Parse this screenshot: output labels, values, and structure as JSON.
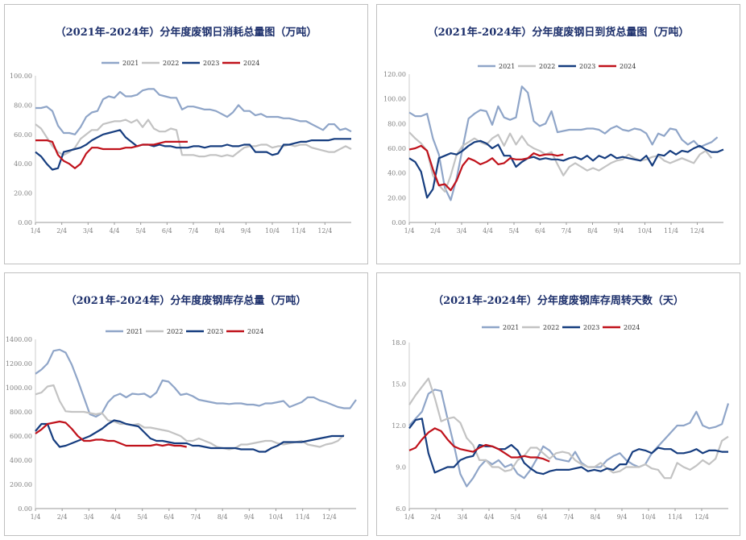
{
  "chart_data": [
    {
      "type": "line",
      "title": "（2021年-2024年）分年度废钢日消耗总量图（万吨）",
      "x_tick_labels": [
        "1/4",
        "2/4",
        "3/4",
        "4/4",
        "5/4",
        "6/4",
        "7/4",
        "8/4",
        "9/4",
        "10/4",
        "11/4",
        "12/4"
      ],
      "y_tick_labels": [
        "0.00",
        "20.00",
        "40.00",
        "60.00",
        "80.00",
        "100.00"
      ],
      "ylim": [
        0,
        100
      ],
      "grid": false,
      "legend_position": "top",
      "series": [
        {
          "name": "2021",
          "color": "#8fa5c8",
          "values": [
            78,
            78,
            79,
            76,
            66,
            61,
            61,
            60,
            65,
            72,
            75,
            76,
            84,
            86,
            85,
            89,
            86,
            86,
            87,
            90,
            91,
            91,
            87,
            86,
            85,
            85,
            77,
            79,
            79,
            78,
            77,
            77,
            76,
            74,
            72,
            75,
            80,
            76,
            76,
            73,
            74,
            72,
            72,
            72,
            71,
            71,
            70,
            69,
            69,
            67,
            65,
            63,
            67,
            67,
            63,
            64,
            62
          ]
        },
        {
          "name": "2022",
          "color": "#c3c3c3",
          "values": [
            67,
            64,
            58,
            52,
            48,
            46,
            48,
            51,
            57,
            60,
            63,
            63,
            67,
            68,
            69,
            69,
            70,
            68,
            70,
            65,
            70,
            64,
            62,
            62,
            64,
            63,
            46,
            46,
            46,
            45,
            45,
            46,
            46,
            45,
            46,
            45,
            48,
            51,
            52,
            52,
            53,
            53,
            51,
            52,
            52,
            53,
            52,
            53,
            53,
            51,
            50,
            49,
            48,
            48,
            50,
            52,
            50
          ]
        },
        {
          "name": "2023",
          "color": "#163d7f",
          "values": [
            48,
            45,
            40,
            36,
            37,
            48,
            49,
            50,
            51,
            53,
            56,
            58,
            60,
            61,
            62,
            63,
            58,
            55,
            52,
            53,
            53,
            52,
            53,
            52,
            52,
            51,
            51,
            51,
            52,
            52,
            51,
            52,
            52,
            52,
            53,
            52,
            52,
            53,
            53,
            48,
            48,
            48,
            46,
            47,
            53,
            53,
            54,
            55,
            55,
            56,
            56,
            56,
            56,
            57,
            57,
            57,
            57
          ]
        },
        {
          "name": "2024",
          "color": "#c0121b",
          "values": [
            56,
            56,
            56,
            55,
            46,
            42,
            40,
            37,
            40,
            47,
            51,
            51,
            50,
            50,
            50,
            50,
            51,
            51,
            52,
            53,
            53,
            53,
            54,
            55,
            55,
            55,
            55,
            55
          ]
        }
      ]
    },
    {
      "type": "line",
      "title": "（2021年-2024年）分年度废钢日到货总量图（万吨）",
      "x_tick_labels": [
        "1/4",
        "2/4",
        "3/4",
        "4/4",
        "5/4",
        "6/4",
        "7/4",
        "8/4",
        "9/4",
        "10/4",
        "11/4",
        "12/4"
      ],
      "y_tick_labels": [
        "0.00",
        "20.00",
        "40.00",
        "60.00",
        "80.00",
        "100.00",
        "120.00"
      ],
      "ylim": [
        0,
        120
      ],
      "grid": false,
      "legend_position": "top",
      "series": [
        {
          "name": "2021",
          "color": "#8fa5c8",
          "values": [
            89,
            86,
            86,
            88,
            68,
            55,
            28,
            18,
            36,
            60,
            84,
            88,
            91,
            90,
            79,
            94,
            85,
            83,
            85,
            110,
            105,
            82,
            78,
            80,
            90,
            73,
            74,
            75,
            75,
            75,
            76,
            76,
            75,
            72,
            76,
            78,
            75,
            74,
            76,
            75,
            72,
            63,
            72,
            70,
            76,
            75,
            67,
            63,
            66,
            61,
            63,
            65,
            69
          ]
        },
        {
          "name": "2022",
          "color": "#c3c3c3",
          "values": [
            73,
            68,
            64,
            58,
            38,
            30,
            25,
            38,
            55,
            62,
            65,
            68,
            65,
            63,
            68,
            71,
            62,
            72,
            63,
            70,
            63,
            60,
            58,
            55,
            57,
            47,
            38,
            45,
            48,
            45,
            42,
            44,
            42,
            45,
            48,
            50,
            51,
            55,
            52,
            50,
            51,
            53,
            54,
            50,
            48,
            50,
            52,
            50,
            48,
            55,
            58,
            52
          ]
        },
        {
          "name": "2023",
          "color": "#163d7f",
          "values": [
            52,
            49,
            41,
            20,
            27,
            52,
            54,
            56,
            55,
            58,
            62,
            65,
            66,
            64,
            60,
            63,
            54,
            54,
            45,
            49,
            52,
            53,
            51,
            52,
            51,
            51,
            50,
            52,
            53,
            51,
            54,
            50,
            54,
            52,
            55,
            52,
            53,
            52,
            51,
            50,
            54,
            46,
            55,
            54,
            58,
            55,
            58,
            57,
            60,
            62,
            59,
            57,
            57,
            59
          ]
        },
        {
          "name": "2024",
          "color": "#c0121b",
          "values": [
            59,
            60,
            62,
            58,
            43,
            30,
            31,
            26,
            34,
            46,
            52,
            50,
            47,
            49,
            52,
            47,
            48,
            52,
            51,
            51,
            52,
            56,
            54,
            55,
            55,
            54,
            55
          ]
        }
      ]
    },
    {
      "type": "line",
      "title": "（2021年-2024年）分年度废钢库存总量（万吨）",
      "x_tick_labels": [
        "1/4",
        "2/4",
        "3/4",
        "4/4",
        "5/4",
        "6/4",
        "7/4",
        "8/4",
        "9/4",
        "10/4",
        "11/4",
        "12/4"
      ],
      "y_tick_labels": [
        "0.00",
        "200.00",
        "400.00",
        "600.00",
        "800.00",
        "1000.00",
        "1200.00",
        "1400.00"
      ],
      "ylim": [
        0,
        1400
      ],
      "grid": false,
      "legend_position": "top",
      "series": [
        {
          "name": "2021",
          "color": "#8fa5c8",
          "values": [
            1115,
            1150,
            1200,
            1305,
            1315,
            1290,
            1190,
            1060,
            920,
            780,
            760,
            790,
            880,
            930,
            950,
            920,
            950,
            945,
            950,
            920,
            960,
            1060,
            1050,
            1000,
            940,
            950,
            930,
            900,
            890,
            880,
            870,
            870,
            865,
            870,
            870,
            860,
            860,
            850,
            870,
            870,
            880,
            890,
            840,
            860,
            880,
            920,
            920,
            895,
            880,
            860,
            840,
            830,
            830,
            900
          ]
        },
        {
          "name": "2022",
          "color": "#c3c3c3",
          "values": [
            945,
            960,
            1010,
            1020,
            890,
            805,
            800,
            800,
            800,
            790,
            780,
            790,
            730,
            720,
            700,
            700,
            690,
            700,
            670,
            670,
            660,
            650,
            640,
            620,
            600,
            560,
            560,
            580,
            560,
            540,
            510,
            500,
            490,
            500,
            530,
            530,
            540,
            550,
            560,
            560,
            540,
            530,
            540,
            550,
            560,
            530,
            520,
            510,
            530,
            540,
            560,
            610
          ]
        },
        {
          "name": "2023",
          "color": "#163d7f",
          "values": [
            640,
            700,
            700,
            570,
            510,
            520,
            540,
            560,
            580,
            600,
            630,
            660,
            700,
            730,
            720,
            700,
            690,
            680,
            630,
            580,
            560,
            560,
            550,
            540,
            540,
            540,
            520,
            520,
            510,
            500,
            500,
            500,
            500,
            500,
            490,
            490,
            490,
            470,
            470,
            500,
            520,
            550,
            550,
            550,
            550,
            560,
            570,
            580,
            590,
            600,
            600,
            600
          ]
        },
        {
          "name": "2024",
          "color": "#c0121b",
          "values": [
            620,
            655,
            700,
            710,
            720,
            710,
            660,
            600,
            560,
            560,
            570,
            570,
            560,
            560,
            540,
            520,
            520,
            520,
            520,
            520,
            530,
            520,
            530,
            520,
            520,
            510
          ]
        }
      ]
    },
    {
      "type": "line",
      "title": "（2021年-2024年）分年度废钢库存周转天数（天）",
      "x_tick_labels": [
        "1/4",
        "2/4",
        "3/4",
        "4/4",
        "5/4",
        "6/4",
        "7/4",
        "8/4",
        "9/4",
        "10/4",
        "11/4",
        "12/4"
      ],
      "y_tick_labels": [
        "6.0",
        "9.0",
        "12.0",
        "15.0",
        "18.0"
      ],
      "ylim": [
        6,
        18
      ],
      "grid": false,
      "legend_position": "top",
      "series": [
        {
          "name": "2021",
          "color": "#8fa5c8",
          "values": [
            12.0,
            12.5,
            13.0,
            14.3,
            14.6,
            14.5,
            12.5,
            10.6,
            8.5,
            7.6,
            8.2,
            9.0,
            9.5,
            9.2,
            9.5,
            9.0,
            9.2,
            8.5,
            8.2,
            8.8,
            9.6,
            10.5,
            10.2,
            9.6,
            9.5,
            9.4,
            10.1,
            9.3,
            9.0,
            9.0,
            9.0,
            9.5,
            9.8,
            10.0,
            9.5,
            9.2,
            9.0,
            9.2,
            10.0,
            10.5,
            11.0,
            11.5,
            12.0,
            12.0,
            12.2,
            13.0,
            12.0,
            11.8,
            11.9,
            12.1,
            13.6
          ]
        },
        {
          "name": "2022",
          "color": "#c3c3c3",
          "values": [
            13.5,
            14.2,
            14.8,
            15.4,
            14.0,
            12.3,
            12.5,
            12.6,
            12.2,
            11.1,
            10.6,
            9.5,
            9.5,
            9.0,
            9.0,
            8.7,
            8.8,
            9.5,
            9.8,
            10.4,
            10.4,
            10.0,
            9.6,
            10.0,
            10.1,
            10.0,
            9.5,
            9.2,
            9.0,
            9.0,
            9.3,
            8.9,
            8.6,
            8.7,
            9.0,
            9.0,
            9.0,
            9.2,
            8.9,
            8.8,
            8.2,
            8.2,
            9.3,
            9.0,
            8.8,
            9.1,
            9.5,
            9.2,
            9.6,
            10.9,
            11.2
          ]
        },
        {
          "name": "2023",
          "color": "#163d7f",
          "values": [
            11.8,
            12.4,
            12.5,
            10.0,
            8.6,
            8.8,
            9.0,
            9.0,
            9.5,
            9.7,
            9.8,
            10.6,
            10.5,
            10.5,
            10.3,
            10.3,
            10.6,
            10.2,
            9.3,
            8.9,
            8.6,
            8.5,
            8.7,
            8.8,
            8.8,
            8.8,
            8.9,
            9.0,
            8.7,
            8.8,
            8.7,
            8.9,
            8.8,
            9.2,
            9.2,
            10.1,
            10.3,
            10.2,
            10.0,
            10.4,
            10.3,
            10.3,
            10.0,
            10.0,
            10.1,
            10.3,
            10.0,
            10.2,
            10.2,
            10.1,
            10.1
          ]
        },
        {
          "name": "2024",
          "color": "#c0121b",
          "values": [
            10.2,
            10.4,
            11.0,
            11.5,
            11.8,
            11.6,
            11.0,
            10.5,
            10.3,
            10.2,
            10.1,
            10.4,
            10.6,
            10.5,
            10.3,
            10.0,
            9.7,
            9.7,
            9.8,
            9.7,
            9.7,
            9.6,
            9.4
          ]
        }
      ]
    }
  ]
}
